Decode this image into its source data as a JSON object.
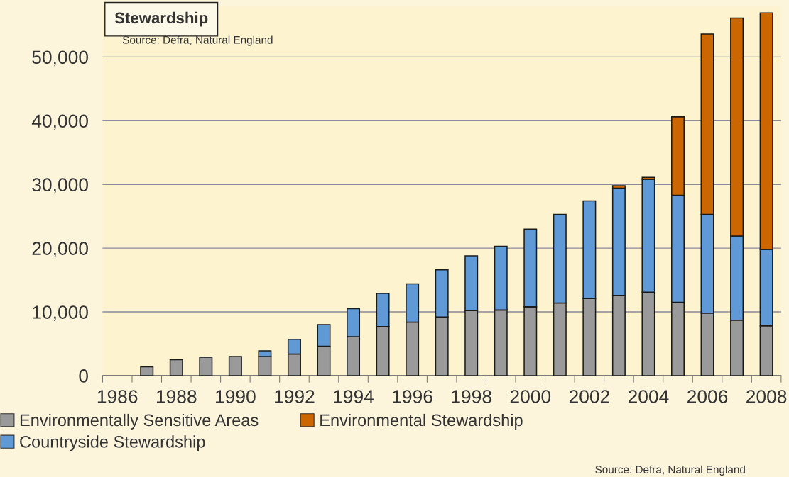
{
  "chart_data": {
    "type": "bar",
    "title": "Stewardship",
    "stacked": true,
    "annotations": [
      "Source: Defra, Natural England",
      "Source: Defra, Natural England"
    ],
    "categories": [
      "1986",
      null,
      "1988",
      null,
      "1990",
      null,
      "1992",
      null,
      "1994",
      null,
      "1996",
      null,
      "1998",
      null,
      "2000",
      null,
      "2002",
      null,
      "2004",
      null,
      "2006",
      null,
      "2008"
    ],
    "series": [
      {
        "name": "Environmentally Sensitive Areas",
        "color": "#9a9a9a",
        "values": [
          0,
          1400,
          2500,
          2900,
          3000,
          3000,
          3400,
          4600,
          6100,
          7700,
          8400,
          9200,
          10200,
          10300,
          10800,
          11400,
          12100,
          12600,
          13100,
          11500,
          9800,
          8700,
          7800
        ]
      },
      {
        "name": "Countryside Stewardship",
        "color": "#5f9ad6",
        "values": [
          0,
          0,
          0,
          0,
          0,
          900,
          2300,
          3400,
          4400,
          5200,
          6000,
          7400,
          8600,
          10000,
          12200,
          13900,
          15300,
          16800,
          17700,
          16800,
          15500,
          13200,
          12000
        ]
      },
      {
        "name": "Environmental Stewardship",
        "color": "#cc6600",
        "values": [
          0,
          0,
          0,
          0,
          0,
          0,
          0,
          0,
          0,
          0,
          0,
          0,
          0,
          0,
          0,
          0,
          0,
          400,
          300,
          12300,
          28300,
          34200,
          37100
        ]
      }
    ],
    "ylim": [
      0,
      58000
    ],
    "yticks": [
      {
        "value": 0,
        "label": "0"
      },
      {
        "value": 10000,
        "label": "10,000"
      },
      {
        "value": 20000,
        "label": "20,000"
      },
      {
        "value": 30000,
        "label": "30,000"
      },
      {
        "value": 40000,
        "label": "40,000"
      },
      {
        "value": 50000,
        "label": "50,000"
      }
    ],
    "grid": "y",
    "legend": "bottom"
  }
}
